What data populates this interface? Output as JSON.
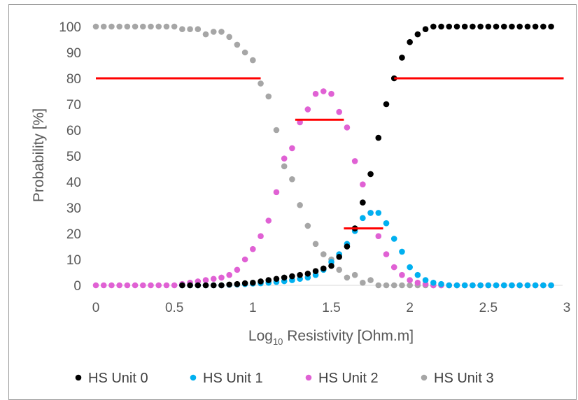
{
  "chart_data": {
    "type": "scatter",
    "xlabel_main": "Log",
    "xlabel_sub": "10",
    "xlabel_rest": " Resistivity [Ohm.m]",
    "ylabel": "Probability [%]",
    "xlim": [
      0,
      3
    ],
    "ylim": [
      0,
      100
    ],
    "x_ticks": [
      0,
      0.5,
      1,
      1.5,
      2,
      2.5,
      3
    ],
    "x_tick_labels": [
      "0",
      "0.5",
      "1",
      "1.5",
      "2",
      "2.5",
      "3"
    ],
    "y_ticks": [
      0,
      10,
      20,
      30,
      40,
      50,
      60,
      70,
      80,
      90,
      100
    ],
    "y_tick_labels": [
      "0",
      "10",
      "20",
      "30",
      "40",
      "50",
      "60",
      "70",
      "80",
      "90",
      "100"
    ],
    "grid": false,
    "legend_position": "bottom",
    "series": [
      {
        "name": "HS Unit 0",
        "color": "#000000",
        "points": [
          [
            0.55,
            0
          ],
          [
            0.6,
            0
          ],
          [
            0.65,
            0
          ],
          [
            0.7,
            0
          ],
          [
            0.75,
            0
          ],
          [
            0.8,
            0
          ],
          [
            0.85,
            0.3
          ],
          [
            0.9,
            0.5
          ],
          [
            0.95,
            0.8
          ],
          [
            1.0,
            1
          ],
          [
            1.05,
            1.5
          ],
          [
            1.1,
            2
          ],
          [
            1.15,
            2.5
          ],
          [
            1.2,
            3
          ],
          [
            1.25,
            3.5
          ],
          [
            1.3,
            4
          ],
          [
            1.35,
            4.5
          ],
          [
            1.4,
            5.5
          ],
          [
            1.45,
            6.5
          ],
          [
            1.5,
            7.5
          ],
          [
            1.55,
            11
          ],
          [
            1.6,
            15
          ],
          [
            1.65,
            22
          ],
          [
            1.7,
            32
          ],
          [
            1.75,
            43
          ],
          [
            1.8,
            57
          ],
          [
            1.85,
            70
          ],
          [
            1.9,
            80
          ],
          [
            1.95,
            88
          ],
          [
            2.0,
            94
          ],
          [
            2.05,
            97
          ],
          [
            2.1,
            99
          ],
          [
            2.15,
            100
          ],
          [
            2.2,
            100
          ],
          [
            2.25,
            100
          ],
          [
            2.3,
            100
          ],
          [
            2.35,
            100
          ],
          [
            2.4,
            100
          ],
          [
            2.45,
            100
          ],
          [
            2.5,
            100
          ],
          [
            2.55,
            100
          ],
          [
            2.6,
            100
          ],
          [
            2.65,
            100
          ],
          [
            2.7,
            100
          ],
          [
            2.75,
            100
          ],
          [
            2.8,
            100
          ],
          [
            2.85,
            100
          ],
          [
            2.9,
            100
          ]
        ]
      },
      {
        "name": "HS Unit 1",
        "color": "#00b0f0",
        "points": [
          [
            0.55,
            0
          ],
          [
            0.6,
            0
          ],
          [
            0.65,
            0
          ],
          [
            0.7,
            0
          ],
          [
            0.75,
            0
          ],
          [
            0.8,
            0
          ],
          [
            0.85,
            0.2
          ],
          [
            0.9,
            0.3
          ],
          [
            0.95,
            0.5
          ],
          [
            1.0,
            0.7
          ],
          [
            1.05,
            0.8
          ],
          [
            1.1,
            1
          ],
          [
            1.15,
            1.3
          ],
          [
            1.2,
            1.6
          ],
          [
            1.25,
            2
          ],
          [
            1.3,
            2.5
          ],
          [
            1.35,
            3
          ],
          [
            1.4,
            4
          ],
          [
            1.45,
            6
          ],
          [
            1.5,
            9
          ],
          [
            1.55,
            12
          ],
          [
            1.6,
            16
          ],
          [
            1.65,
            21
          ],
          [
            1.7,
            26
          ],
          [
            1.75,
            28
          ],
          [
            1.8,
            28
          ],
          [
            1.85,
            24
          ],
          [
            1.9,
            18
          ],
          [
            1.95,
            13
          ],
          [
            2.0,
            7
          ],
          [
            2.05,
            4
          ],
          [
            2.1,
            2
          ],
          [
            2.15,
            1
          ],
          [
            2.2,
            0.5
          ],
          [
            2.25,
            0
          ],
          [
            2.3,
            0
          ],
          [
            2.35,
            0
          ],
          [
            2.4,
            0
          ],
          [
            2.45,
            0
          ],
          [
            2.5,
            0
          ],
          [
            2.55,
            0
          ],
          [
            2.6,
            0
          ],
          [
            2.65,
            0
          ],
          [
            2.7,
            0
          ],
          [
            2.75,
            0
          ],
          [
            2.8,
            0
          ],
          [
            2.85,
            0
          ],
          [
            2.9,
            0
          ]
        ]
      },
      {
        "name": "HS Unit 2",
        "color": "#e061d4",
        "points": [
          [
            0,
            0
          ],
          [
            0.05,
            0
          ],
          [
            0.1,
            0
          ],
          [
            0.15,
            0
          ],
          [
            0.2,
            0
          ],
          [
            0.25,
            0
          ],
          [
            0.3,
            0
          ],
          [
            0.35,
            0
          ],
          [
            0.4,
            0
          ],
          [
            0.45,
            0
          ],
          [
            0.5,
            0
          ],
          [
            0.55,
            0.5
          ],
          [
            0.6,
            1
          ],
          [
            0.65,
            1.5
          ],
          [
            0.7,
            2
          ],
          [
            0.75,
            2.5
          ],
          [
            0.8,
            3
          ],
          [
            0.85,
            4
          ],
          [
            0.9,
            6
          ],
          [
            0.95,
            10
          ],
          [
            1.0,
            14
          ],
          [
            1.05,
            19
          ],
          [
            1.1,
            25
          ],
          [
            1.15,
            36
          ],
          [
            1.2,
            49
          ],
          [
            1.25,
            53
          ],
          [
            1.3,
            63
          ],
          [
            1.35,
            68
          ],
          [
            1.4,
            74
          ],
          [
            1.45,
            75
          ],
          [
            1.5,
            74
          ],
          [
            1.55,
            67
          ],
          [
            1.6,
            61
          ],
          [
            1.65,
            48
          ],
          [
            1.7,
            39
          ],
          [
            1.75,
            28
          ],
          [
            1.8,
            19
          ],
          [
            1.85,
            12
          ],
          [
            1.9,
            7
          ],
          [
            1.95,
            4
          ],
          [
            2.0,
            2
          ],
          [
            2.05,
            1
          ],
          [
            2.1,
            0.5
          ],
          [
            2.15,
            0
          ],
          [
            2.2,
            0
          ],
          [
            2.25,
            0
          ],
          [
            2.3,
            0
          ],
          [
            2.35,
            0
          ],
          [
            2.4,
            0
          ],
          [
            2.45,
            0
          ],
          [
            2.5,
            0
          ],
          [
            2.55,
            0
          ],
          [
            2.6,
            0
          ],
          [
            2.65,
            0
          ],
          [
            2.7,
            0
          ],
          [
            2.75,
            0
          ],
          [
            2.8,
            0
          ],
          [
            2.85,
            0
          ],
          [
            2.9,
            0
          ]
        ]
      },
      {
        "name": "HS Unit 3",
        "color": "#a6a6a6",
        "points": [
          [
            0,
            100
          ],
          [
            0.05,
            100
          ],
          [
            0.1,
            100
          ],
          [
            0.15,
            100
          ],
          [
            0.2,
            100
          ],
          [
            0.25,
            100
          ],
          [
            0.3,
            100
          ],
          [
            0.35,
            100
          ],
          [
            0.4,
            100
          ],
          [
            0.45,
            100
          ],
          [
            0.5,
            100
          ],
          [
            0.55,
            99
          ],
          [
            0.6,
            99
          ],
          [
            0.65,
            99
          ],
          [
            0.7,
            97
          ],
          [
            0.75,
            98
          ],
          [
            0.8,
            98
          ],
          [
            0.85,
            96
          ],
          [
            0.9,
            93
          ],
          [
            0.95,
            90
          ],
          [
            1.0,
            87
          ],
          [
            1.05,
            78
          ],
          [
            1.1,
            73
          ],
          [
            1.15,
            60
          ],
          [
            1.2,
            46
          ],
          [
            1.25,
            41
          ],
          [
            1.3,
            31
          ],
          [
            1.35,
            23
          ],
          [
            1.4,
            16
          ],
          [
            1.45,
            12
          ],
          [
            1.5,
            10
          ],
          [
            1.55,
            6
          ],
          [
            1.6,
            3
          ],
          [
            1.65,
            4
          ],
          [
            1.7,
            1
          ],
          [
            1.75,
            2
          ],
          [
            1.8,
            0
          ],
          [
            1.85,
            0
          ],
          [
            1.9,
            0
          ],
          [
            1.95,
            0
          ],
          [
            2.0,
            0
          ],
          [
            2.05,
            0
          ],
          [
            2.1,
            0
          ],
          [
            2.15,
            0
          ],
          [
            2.2,
            0
          ],
          [
            2.25,
            0
          ],
          [
            2.3,
            0
          ],
          [
            2.35,
            0
          ],
          [
            2.4,
            0
          ],
          [
            2.45,
            0
          ],
          [
            2.5,
            0
          ],
          [
            2.55,
            0
          ],
          [
            2.6,
            0
          ],
          [
            2.65,
            0
          ],
          [
            2.7,
            0
          ],
          [
            2.75,
            0
          ],
          [
            2.8,
            0
          ],
          [
            2.85,
            0
          ],
          [
            2.9,
            0
          ]
        ]
      }
    ],
    "red_segments": {
      "color": "#ff0000",
      "segments": [
        {
          "x1": 0,
          "x2": 1.05,
          "y": 80
        },
        {
          "x1": 1.27,
          "x2": 1.58,
          "y": 64
        },
        {
          "x1": 1.58,
          "x2": 1.83,
          "y": 22
        },
        {
          "x1": 1.9,
          "x2": 2.98,
          "y": 80
        }
      ]
    }
  }
}
